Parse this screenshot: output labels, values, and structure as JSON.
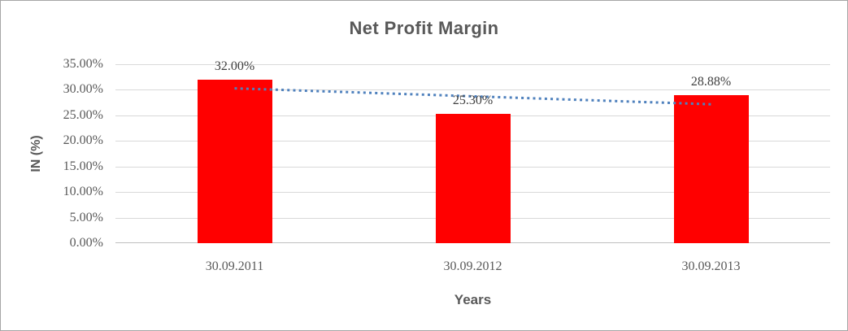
{
  "chart_data": {
    "type": "bar",
    "title": "Net Profit Margin",
    "xlabel": "Years",
    "ylabel": "IN (%)",
    "categories": [
      "30.09.2011",
      "30.09.2012",
      "30.09.2013"
    ],
    "values": [
      32.0,
      25.3,
      28.88
    ],
    "data_labels": [
      "32.00%",
      "25.30%",
      "28.88%"
    ],
    "yticks": [
      "35.00%",
      "30.00%",
      "25.00%",
      "20.00%",
      "15.00%",
      "10.00%",
      "5.00%",
      "0.00%"
    ],
    "ylim": [
      0,
      35
    ],
    "ytick_step": 5,
    "grid": true,
    "legend": false,
    "bar_color": "#ff0000",
    "trendline": {
      "type": "linear",
      "style": "dotted",
      "color": "#4f81bd",
      "start_value": 30.29,
      "end_value": 27.17
    },
    "colors": {
      "title_text": "#595959",
      "tick_text": "#595959",
      "data_label_text": "#404040",
      "gridline": "#d9d9d9",
      "axis_line": "#bfbfbf",
      "frame_border": "#a6a6a6"
    }
  }
}
